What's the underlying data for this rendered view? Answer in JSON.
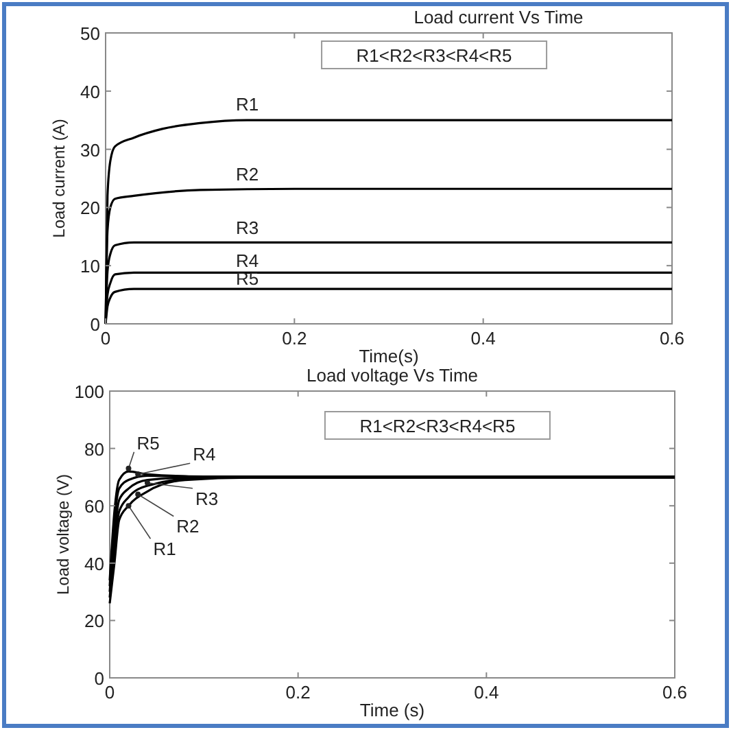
{
  "chart_data": [
    {
      "type": "line",
      "title": "Load current Vs Time",
      "xlabel": "Time(s)",
      "ylabel": "Load current (A)",
      "xlim": [
        0,
        0.6
      ],
      "ylim": [
        0,
        50
      ],
      "xticks": [
        0,
        0.2,
        0.4,
        0.6
      ],
      "yticks": [
        0,
        10,
        20,
        30,
        40,
        50
      ],
      "grid": false,
      "marker": "none",
      "line_style": "solid",
      "annotations": [
        "R1<R2<R3<R4<R5",
        {
          "text": "R1",
          "x": 0.15,
          "y": 35
        },
        {
          "text": "R2",
          "x": 0.15,
          "y": 23.2
        },
        {
          "text": "R3",
          "x": 0.15,
          "y": 14
        },
        {
          "text": "R4",
          "x": 0.15,
          "y": 8.8
        },
        {
          "text": "R5",
          "x": 0.15,
          "y": 6
        }
      ],
      "series": [
        {
          "color": "#000000",
          "x": [
            0,
            0.002,
            0.005,
            0.01,
            0.03,
            0.06,
            0.1,
            0.15,
            0.6
          ],
          "values": [
            0,
            22,
            28,
            30.5,
            32,
            33.5,
            34.5,
            35,
            35
          ]
        },
        {
          "color": "#000000",
          "x": [
            0,
            0.002,
            0.005,
            0.01,
            0.03,
            0.1,
            0.2,
            0.6
          ],
          "values": [
            0,
            16,
            20,
            21.5,
            22,
            23,
            23.2,
            23.2
          ]
        },
        {
          "color": "#000000",
          "x": [
            0,
            0.002,
            0.005,
            0.01,
            0.03,
            0.1,
            0.6
          ],
          "values": [
            0,
            9,
            12,
            13.5,
            14,
            14,
            14
          ]
        },
        {
          "color": "#000000",
          "x": [
            0,
            0.002,
            0.005,
            0.01,
            0.03,
            0.6
          ],
          "values": [
            0,
            5,
            7,
            8.5,
            8.8,
            8.8
          ]
        },
        {
          "color": "#000000",
          "x": [
            0,
            0.002,
            0.005,
            0.01,
            0.03,
            0.6
          ],
          "values": [
            0,
            3,
            4.5,
            5.5,
            6,
            6
          ]
        }
      ]
    },
    {
      "type": "line",
      "title": "Load voltage Vs Time",
      "xlabel": "Time (s)",
      "ylabel": "Load voltage (V)",
      "xlim": [
        0,
        0.6
      ],
      "ylim": [
        0,
        100
      ],
      "xticks": [
        0,
        0.2,
        0.4,
        0.6
      ],
      "yticks": [
        0,
        20,
        40,
        60,
        80,
        100
      ],
      "grid": false,
      "marker": "none",
      "line_style": "solid",
      "annotations": [
        "R1<R2<R3<R4<R5",
        {
          "text": "R5",
          "x": 0.02,
          "y": 73
        },
        {
          "text": "R4",
          "x": 0.03,
          "y": 71
        },
        {
          "text": "R3",
          "x": 0.04,
          "y": 68
        },
        {
          "text": "R2",
          "x": 0.03,
          "y": 64
        },
        {
          "text": "R1",
          "x": 0.02,
          "y": 60
        }
      ],
      "series": [
        {
          "color": "#000000",
          "x": [
            0,
            0.005,
            0.01,
            0.02,
            0.04,
            0.08,
            0.15,
            0.6
          ],
          "values": [
            26,
            40,
            55,
            60,
            65,
            69,
            69.8,
            69.8
          ]
        },
        {
          "color": "#000000",
          "x": [
            0,
            0.005,
            0.01,
            0.02,
            0.04,
            0.1,
            0.6
          ],
          "values": [
            28,
            45,
            58,
            63,
            67,
            69.8,
            69.9
          ]
        },
        {
          "color": "#000000",
          "x": [
            0,
            0.005,
            0.01,
            0.02,
            0.04,
            0.1,
            0.6
          ],
          "values": [
            30,
            50,
            62,
            66,
            69,
            70,
            70
          ]
        },
        {
          "color": "#000000",
          "x": [
            0,
            0.005,
            0.01,
            0.02,
            0.04,
            0.1,
            0.6
          ],
          "values": [
            32,
            55,
            66,
            69,
            70.5,
            70.1,
            70.1
          ]
        },
        {
          "color": "#000000",
          "x": [
            0,
            0.005,
            0.01,
            0.02,
            0.04,
            0.1,
            0.6
          ],
          "values": [
            34,
            58,
            69,
            72,
            71,
            70.2,
            70.2
          ]
        }
      ]
    }
  ]
}
